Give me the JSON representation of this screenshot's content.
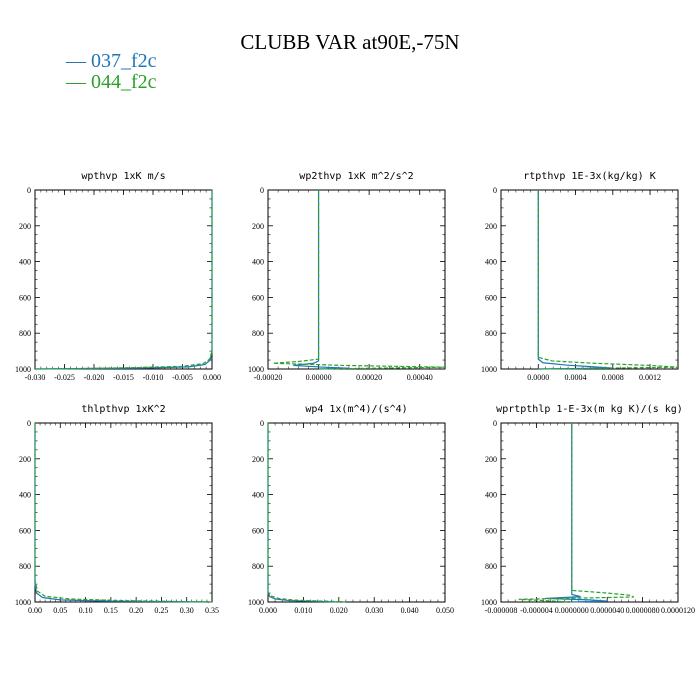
{
  "title": "CLUBB VAR at90E,-75N",
  "legend": [
    {
      "label": "— 037_f2c",
      "color": "#1f77b4"
    },
    {
      "label": "— 044_f2c",
      "color": "#2ca02c"
    }
  ],
  "chart_data": [
    {
      "type": "line",
      "title": "wpthvp   1xK  m/s",
      "xlim": [
        -0.03,
        0.0
      ],
      "ylim": [
        1000,
        0
      ],
      "xticks": [
        "-0.030",
        "-0.025",
        "-0.020",
        "-0.015",
        "-0.010",
        "-0.005",
        "0.000"
      ],
      "xtick_values": [
        -0.03,
        -0.025,
        -0.02,
        -0.015,
        -0.01,
        -0.005,
        0.0
      ],
      "yticks": [
        "0",
        "200",
        "400",
        "600",
        "800",
        "1000"
      ],
      "series": [
        {
          "name": "037_f2c",
          "style": "solid",
          "color": "#1f77b4",
          "x": [
            0.0,
            0.0,
            -0.0003,
            -0.0012,
            -0.004,
            -0.012,
            -0.022,
            -0.03
          ],
          "y": [
            0,
            900,
            950,
            975,
            988,
            995,
            998,
            1000
          ]
        },
        {
          "name": "044_f2c",
          "style": "dashed",
          "color": "#2ca02c",
          "x": [
            0.0,
            0.0,
            -0.0004,
            -0.0015,
            -0.005,
            -0.014,
            -0.024,
            -0.03
          ],
          "y": [
            0,
            900,
            945,
            970,
            985,
            993,
            998,
            1000
          ]
        }
      ]
    },
    {
      "type": "line",
      "title": "wp2thvp   1xK  m^2/s^2",
      "xlim": [
        -0.0002,
        0.0005
      ],
      "ylim": [
        1000,
        0
      ],
      "xticks": [
        "-0.00020",
        "0.00000",
        "0.00020",
        "0.00040"
      ],
      "xtick_values": [
        -0.0002,
        0.0,
        0.0002,
        0.0004
      ],
      "yticks": [
        "0",
        "200",
        "400",
        "600",
        "800",
        "1000"
      ],
      "series": [
        {
          "name": "037_f2c",
          "style": "solid",
          "color": "#1f77b4",
          "x": [
            0.0,
            0.0,
            -2e-05,
            -0.0001,
            2e-05,
            0.00012,
            0.0
          ],
          "y": [
            0,
            955,
            968,
            980,
            990,
            996,
            1000
          ]
        },
        {
          "name": "044_f2c",
          "style": "dashed",
          "color": "#2ca02c",
          "x": [
            0.0,
            0.0,
            -8e-05,
            -0.00018,
            0.0001,
            0.0005,
            0.0
          ],
          "y": [
            0,
            945,
            958,
            968,
            980,
            990,
            1000
          ]
        }
      ]
    },
    {
      "type": "line",
      "title": "rtpthvp   1E-3x(kg/kg)  K",
      "xlim": [
        -0.0004,
        0.0015
      ],
      "ylim": [
        1000,
        0
      ],
      "xticks": [
        "0.0000",
        "0.0004",
        "0.0008",
        "0.0012"
      ],
      "xtick_values": [
        0.0,
        0.0004,
        0.0008,
        0.0012
      ],
      "yticks": [
        "0",
        "200",
        "400",
        "600",
        "800",
        "1000"
      ],
      "series": [
        {
          "name": "037_f2c",
          "style": "solid",
          "color": "#1f77b4",
          "x": [
            0.0,
            0.0,
            5e-05,
            0.0003,
            0.0006,
            0.0008,
            0.0
          ],
          "y": [
            0,
            945,
            965,
            978,
            988,
            995,
            1000
          ]
        },
        {
          "name": "044_f2c",
          "style": "dashed",
          "color": "#2ca02c",
          "x": [
            0.0,
            0.0,
            0.00015,
            0.0006,
            0.0012,
            0.0015,
            0.0
          ],
          "y": [
            0,
            935,
            955,
            968,
            980,
            990,
            1000
          ]
        }
      ]
    },
    {
      "type": "line",
      "title": "thlpthvp   1xK^2",
      "xlim": [
        0.0,
        0.35
      ],
      "ylim": [
        1000,
        0
      ],
      "xticks": [
        "0.00",
        "0.05",
        "0.10",
        "0.15",
        "0.20",
        "0.25",
        "0.30",
        "0.35"
      ],
      "xtick_values": [
        0.0,
        0.05,
        0.1,
        0.15,
        0.2,
        0.25,
        0.3,
        0.35
      ],
      "yticks": [
        "0",
        "200",
        "400",
        "600",
        "800",
        "1000"
      ],
      "series": [
        {
          "name": "037_f2c",
          "style": "solid",
          "color": "#1f77b4",
          "x": [
            0.0,
            0.0,
            0.003,
            0.015,
            0.05,
            0.14,
            0.26,
            0.34
          ],
          "y": [
            0,
            900,
            950,
            975,
            988,
            995,
            998,
            1000
          ]
        },
        {
          "name": "044_f2c",
          "style": "dashed",
          "color": "#2ca02c",
          "x": [
            0.0,
            0.0,
            0.005,
            0.02,
            0.07,
            0.17,
            0.28,
            0.35
          ],
          "y": [
            0,
            880,
            940,
            968,
            983,
            992,
            997,
            1000
          ]
        }
      ]
    },
    {
      "type": "line",
      "title": "wp4   1x(m^4)/(s^4)",
      "xlim": [
        0.0,
        0.05
      ],
      "ylim": [
        1000,
        0
      ],
      "xticks": [
        "0.000",
        "0.010",
        "0.020",
        "0.030",
        "0.040",
        "0.050"
      ],
      "xtick_values": [
        0.0,
        0.01,
        0.02,
        0.03,
        0.04,
        0.05
      ],
      "yticks": [
        "0",
        "200",
        "400",
        "600",
        "800",
        "1000"
      ],
      "series": [
        {
          "name": "037_f2c",
          "style": "solid",
          "color": "#1f77b4",
          "x": [
            0.0,
            0.0,
            0.0005,
            0.002,
            0.006,
            0.014,
            0.02
          ],
          "y": [
            0,
            950,
            970,
            983,
            992,
            997,
            1000
          ]
        },
        {
          "name": "044_f2c",
          "style": "dashed",
          "color": "#2ca02c",
          "x": [
            0.0,
            0.0,
            0.0007,
            0.003,
            0.008,
            0.017,
            0.022
          ],
          "y": [
            0,
            945,
            965,
            980,
            990,
            996,
            1000
          ]
        }
      ]
    },
    {
      "type": "line",
      "title": "wprtpthlp   1-E-3x(m kg K)/(s kg)",
      "xlim": [
        -8e-06,
        1.2e-05
      ],
      "ylim": [
        1000,
        0
      ],
      "xticks": [
        "-0.000008",
        "-0.000004",
        "0.0000000",
        "0.0000040",
        "0.0000080",
        "0.0000120"
      ],
      "xtick_values": [
        -8e-06,
        -4e-06,
        0.0,
        4e-06,
        8e-06,
        1.2e-05
      ],
      "yticks": [
        "0",
        "200",
        "400",
        "600",
        "800",
        "1000"
      ],
      "series": [
        {
          "name": "037_f2c",
          "style": "solid",
          "color": "#1f77b4",
          "x": [
            0.0,
            0.0,
            1e-06,
            -3e-06,
            2e-06,
            4e-06,
            0.0
          ],
          "y": [
            0,
            958,
            970,
            980,
            988,
            995,
            1000
          ]
        },
        {
          "name": "044_f2c",
          "style": "dashed",
          "color": "#2ca02c",
          "x": [
            0.0,
            0.0,
            4e-06,
            6.5e-06,
            7e-06,
            -6e-06,
            0.0
          ],
          "y": [
            0,
            935,
            950,
            962,
            972,
            985,
            1000
          ]
        }
      ]
    }
  ]
}
